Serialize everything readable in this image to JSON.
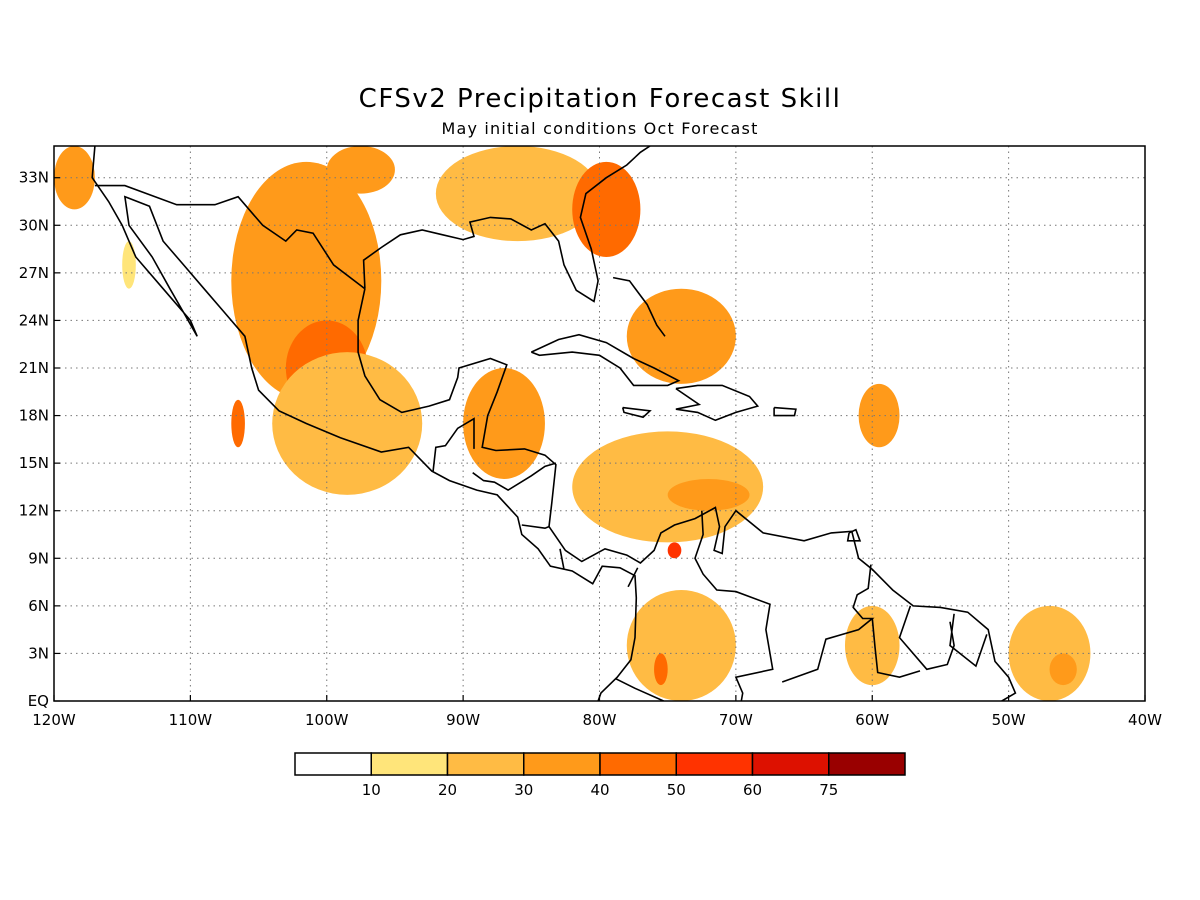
{
  "title": "CFSv2 Precipitation Forecast Skill",
  "subtitle": "May initial conditions  Oct Forecast",
  "map": {
    "lon_range": [
      -120,
      -40
    ],
    "lat_range": [
      0,
      35
    ],
    "lon_ticks": [
      {
        "value": -120,
        "label": "120W"
      },
      {
        "value": -110,
        "label": "110W"
      },
      {
        "value": -100,
        "label": "100W"
      },
      {
        "value": -90,
        "label": "90W"
      },
      {
        "value": -80,
        "label": "80W"
      },
      {
        "value": -70,
        "label": "70W"
      },
      {
        "value": -60,
        "label": "60W"
      },
      {
        "value": -50,
        "label": "50W"
      },
      {
        "value": -40,
        "label": "40W"
      }
    ],
    "lat_ticks": [
      {
        "value": 0,
        "label": "EQ"
      },
      {
        "value": 3,
        "label": "3N"
      },
      {
        "value": 6,
        "label": "6N"
      },
      {
        "value": 9,
        "label": "9N"
      },
      {
        "value": 12,
        "label": "12N"
      },
      {
        "value": 15,
        "label": "15N"
      },
      {
        "value": 18,
        "label": "18N"
      },
      {
        "value": 21,
        "label": "21N"
      },
      {
        "value": 24,
        "label": "24N"
      },
      {
        "value": 27,
        "label": "27N"
      },
      {
        "value": 30,
        "label": "30N"
      },
      {
        "value": 33,
        "label": "33N"
      }
    ],
    "grid": true
  },
  "colorbar": {
    "colors": [
      "#ffffff",
      "#ffe57a",
      "#ffbb44",
      "#ff9a1a",
      "#ff6a00",
      "#ff3300",
      "#dd1100",
      "#990000"
    ],
    "labels": [
      "10",
      "20",
      "30",
      "40",
      "50",
      "60",
      "75"
    ]
  },
  "chart_data": {
    "type": "heatmap",
    "title": "CFSv2 Precipitation Forecast Skill",
    "subtitle": "May initial conditions  Oct Forecast",
    "xlabel": "",
    "ylabel": "",
    "x_range": [
      -120,
      -40
    ],
    "y_range": [
      0,
      35
    ],
    "levels": [
      10,
      20,
      30,
      40,
      50,
      60,
      75
    ],
    "regions": [
      {
        "lon": [
          -120,
          -117
        ],
        "lat": [
          31,
          35
        ],
        "level": 30
      },
      {
        "lon": [
          -115,
          -114
        ],
        "lat": [
          26,
          29
        ],
        "level": 10
      },
      {
        "lon": [
          -107,
          -96
        ],
        "lat": [
          19,
          34
        ],
        "level": 30
      },
      {
        "lon": [
          -103,
          -97
        ],
        "lat": [
          18,
          24
        ],
        "level": 40
      },
      {
        "lon": [
          -107,
          -106
        ],
        "lat": [
          16,
          19
        ],
        "level": 40
      },
      {
        "lon": [
          -104,
          -93
        ],
        "lat": [
          13,
          22
        ],
        "level": 20
      },
      {
        "lon": [
          -100,
          -95
        ],
        "lat": [
          32,
          35
        ],
        "level": 30
      },
      {
        "lon": [
          -92,
          -80
        ],
        "lat": [
          29,
          35
        ],
        "level": 20
      },
      {
        "lon": [
          -82,
          -77
        ],
        "lat": [
          28,
          34
        ],
        "level": 40
      },
      {
        "lon": [
          -78,
          -70
        ],
        "lat": [
          20,
          26
        ],
        "level": 30
      },
      {
        "lon": [
          -90,
          -84
        ],
        "lat": [
          14,
          21
        ],
        "level": 30
      },
      {
        "lon": [
          -82,
          -68
        ],
        "lat": [
          10,
          17
        ],
        "level": 20
      },
      {
        "lon": [
          -75,
          -69
        ],
        "lat": [
          12,
          14
        ],
        "level": 30
      },
      {
        "lon": [
          -75,
          -74
        ],
        "lat": [
          9,
          10
        ],
        "level": 50
      },
      {
        "lon": [
          -78,
          -70
        ],
        "lat": [
          0,
          7
        ],
        "level": 20
      },
      {
        "lon": [
          -76,
          -75
        ],
        "lat": [
          1,
          3
        ],
        "level": 40
      },
      {
        "lon": [
          -61,
          -58
        ],
        "lat": [
          16,
          20
        ],
        "level": 30
      },
      {
        "lon": [
          -62,
          -58
        ],
        "lat": [
          1,
          6
        ],
        "level": 20
      },
      {
        "lon": [
          -50,
          -44
        ],
        "lat": [
          0,
          6
        ],
        "level": 20
      },
      {
        "lon": [
          -47,
          -45
        ],
        "lat": [
          1,
          3
        ],
        "level": 30
      }
    ]
  }
}
